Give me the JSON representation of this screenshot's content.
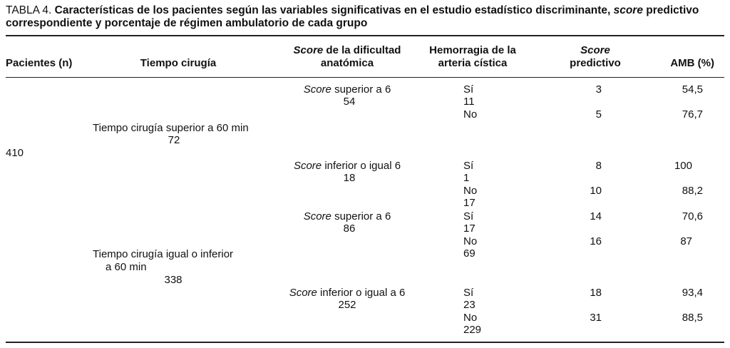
{
  "caption": {
    "prefix": "TABLA 4.",
    "line1_a": "Características de los pacientes según las variables significativas en el estudio estadístico discriminante,",
    "line1_em": "score",
    "line1_b": "predictivo",
    "line2": "correspondiente y porcentaje de régimen ambulatorio de cada grupo"
  },
  "headers": {
    "pacientes": "Pacientes (n)",
    "tiempo": "Tiempo cirugía",
    "score_em": "Score",
    "score_rest": "de la dificultad",
    "score_line2": "anatómica",
    "hemo_line1": "Hemorragia de la",
    "hemo_line2": "arteria cística",
    "pred_line1": "Score",
    "pred_line2": "predictivo",
    "amb": "AMB (%)"
  },
  "pacientes": {
    "n": "410"
  },
  "tiempo": {
    "sup_label": "Tiempo cirugía superior a 60 min",
    "sup_n": "72",
    "inf_label1": "Tiempo cirugía igual o inferior",
    "inf_label2": "a 60 min",
    "inf_n": "338"
  },
  "score_groups": [
    {
      "em": "Score",
      "label": "superior a 6",
      "n": "54"
    },
    {
      "em": "Score",
      "label": "inferior o igual 6",
      "n": "18"
    },
    {
      "em": "Score",
      "label": "superior a 6",
      "n": "86"
    },
    {
      "em": "Score",
      "label": "inferior o igual a 6",
      "n": "252"
    }
  ],
  "rows": [
    {
      "hemo": "Sí",
      "hemo_n": "11",
      "pred": "3",
      "amb": "54,5"
    },
    {
      "hemo": "No",
      "hemo_n": "",
      "pred": "5",
      "amb": "76,7"
    },
    {
      "hemo": "Sí",
      "hemo_n": "1",
      "pred": "8",
      "amb": "100"
    },
    {
      "hemo": "No",
      "hemo_n": "17",
      "pred": "10",
      "amb": "88,2"
    },
    {
      "hemo": "Sí",
      "hemo_n": "17",
      "pred": "14",
      "amb": "70,6"
    },
    {
      "hemo": "No",
      "hemo_n": "69",
      "pred": "16",
      "amb": "87"
    },
    {
      "hemo": "Sí",
      "hemo_n": "23",
      "pred": "18",
      "amb": "93,4"
    },
    {
      "hemo": "No",
      "hemo_n": "229",
      "pred": "31",
      "amb": "88,5"
    }
  ]
}
